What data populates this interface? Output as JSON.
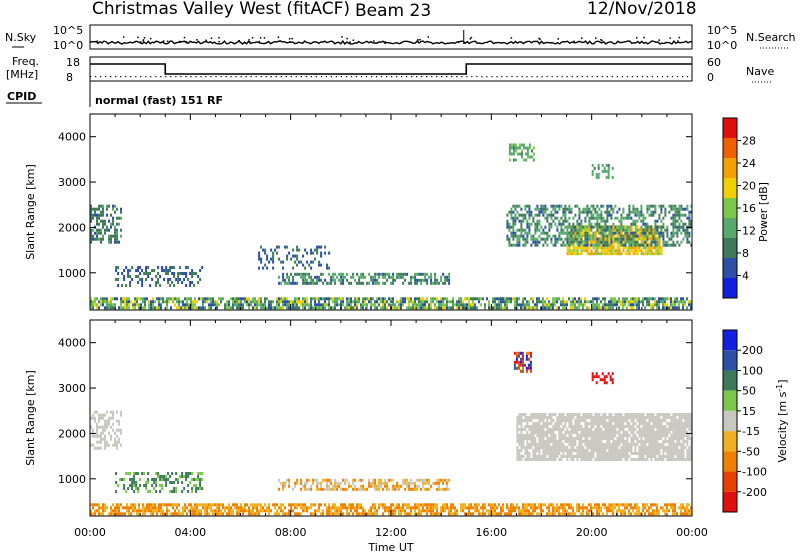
{
  "header": {
    "station": "Christmas Valley West (fitACF)",
    "beam": "Beam 23",
    "date": "12/Nov/2018"
  },
  "panels": {
    "nsky": {
      "label": "N.Sky",
      "ticks": [
        "10^5",
        "10^0"
      ],
      "right_label": "N.Search",
      "right_ticks": [
        "10^5",
        "10^0"
      ]
    },
    "freq": {
      "label_top": "Freq.",
      "label_bottom": "[MHz]",
      "ticks": [
        "18",
        "8"
      ],
      "right_label": "Nave",
      "right_ticks": [
        "60",
        "0"
      ]
    },
    "cpid": {
      "label": "CPID",
      "text": "normal (fast) 151 RF"
    }
  },
  "colors": {
    "power": [
      "#1420e0",
      "#2d4fa8",
      "#3d7a5a",
      "#58a86e",
      "#7cc84a",
      "#f0d000",
      "#f4a000",
      "#f06000",
      "#e01010"
    ],
    "velocity": [
      "#1420e0",
      "#2d4fa8",
      "#3d7a5a",
      "#7cc84a",
      "#c8c8c0",
      "#f0b020",
      "#f08000",
      "#e84000",
      "#e01010"
    ],
    "ground_scatter": "#c8c8c0"
  },
  "chart_data": [
    {
      "type": "heatmap",
      "name": "power-panel",
      "ylabel": "Slant Range [km]",
      "y_ticks": [
        1000,
        2000,
        3000,
        4000
      ],
      "ylim": [
        180,
        4500
      ],
      "xlim": [
        0,
        24
      ],
      "colorbar": {
        "label": "Power [dB]",
        "ticks": [
          4,
          8,
          12,
          16,
          20,
          24,
          28
        ],
        "range": [
          0,
          32
        ]
      },
      "regions": [
        {
          "t0": 0.0,
          "t1": 24.0,
          "r0": 200,
          "r1": 460,
          "v0": 4,
          "v1": 20,
          "density": 0.75
        },
        {
          "t0": 19.0,
          "t1": 22.8,
          "r0": 1450,
          "r1": 2050,
          "v0": 16,
          "v1": 24,
          "density": 0.85
        },
        {
          "t0": 16.6,
          "t1": 24.0,
          "r0": 1600,
          "r1": 2500,
          "v0": 6,
          "v1": 14,
          "density": 0.55
        },
        {
          "t0": 7.5,
          "t1": 14.3,
          "r0": 780,
          "r1": 1000,
          "v0": 6,
          "v1": 14,
          "density": 0.6
        },
        {
          "t0": 1.0,
          "t1": 4.5,
          "r0": 700,
          "r1": 1150,
          "v0": 4,
          "v1": 10,
          "density": 0.35
        },
        {
          "t0": 0.0,
          "t1": 1.2,
          "r0": 1700,
          "r1": 2500,
          "v0": 6,
          "v1": 12,
          "density": 0.5
        },
        {
          "t0": 6.7,
          "t1": 9.5,
          "r0": 1100,
          "r1": 1600,
          "v0": 4,
          "v1": 10,
          "density": 0.3
        },
        {
          "t0": 16.7,
          "t1": 17.7,
          "r0": 3500,
          "r1": 3850,
          "v0": 10,
          "v1": 16,
          "density": 0.5
        },
        {
          "t0": 20.0,
          "t1": 20.8,
          "r0": 3100,
          "r1": 3400,
          "v0": 10,
          "v1": 14,
          "density": 0.4
        }
      ]
    },
    {
      "type": "heatmap",
      "name": "velocity-panel",
      "ylabel": "Slant Range [km]",
      "y_ticks": [
        1000,
        2000,
        3000,
        4000
      ],
      "ylim": [
        180,
        4500
      ],
      "xlim": [
        0,
        24
      ],
      "colorbar": {
        "label": "Velocity [m s^-1]",
        "ticks": [
          200,
          100,
          50,
          15,
          -15,
          -50,
          -100,
          -200
        ]
      },
      "regions": [
        {
          "t0": 0.0,
          "t1": 24.0,
          "r0": 200,
          "r1": 460,
          "v0": -50,
          "v1": -15,
          "density": 0.7
        },
        {
          "t0": 17.0,
          "t1": 24.0,
          "r0": 1450,
          "r1": 2450,
          "v0": 0,
          "v1": 0,
          "density": 0.85
        },
        {
          "t0": 7.5,
          "t1": 14.3,
          "r0": 780,
          "r1": 1000,
          "v0": -50,
          "v1": 0,
          "density": 0.6
        },
        {
          "t0": 1.0,
          "t1": 4.5,
          "r0": 700,
          "r1": 1150,
          "v0": 15,
          "v1": 60,
          "density": 0.35
        },
        {
          "t0": 0.0,
          "t1": 1.2,
          "r0": 1700,
          "r1": 2500,
          "v0": 0,
          "v1": 0,
          "density": 0.5
        },
        {
          "t0": 16.9,
          "t1": 17.6,
          "r0": 3400,
          "r1": 3800,
          "v0": -250,
          "v1": 250,
          "density": 0.6
        },
        {
          "t0": 20.0,
          "t1": 20.8,
          "r0": 3150,
          "r1": 3350,
          "v0": -250,
          "v1": -150,
          "density": 0.5
        }
      ]
    }
  ],
  "time_axis": {
    "ticks": [
      "00:00",
      "04:00",
      "08:00",
      "12:00",
      "16:00",
      "20:00",
      "00:00"
    ],
    "label": "Time UT"
  }
}
